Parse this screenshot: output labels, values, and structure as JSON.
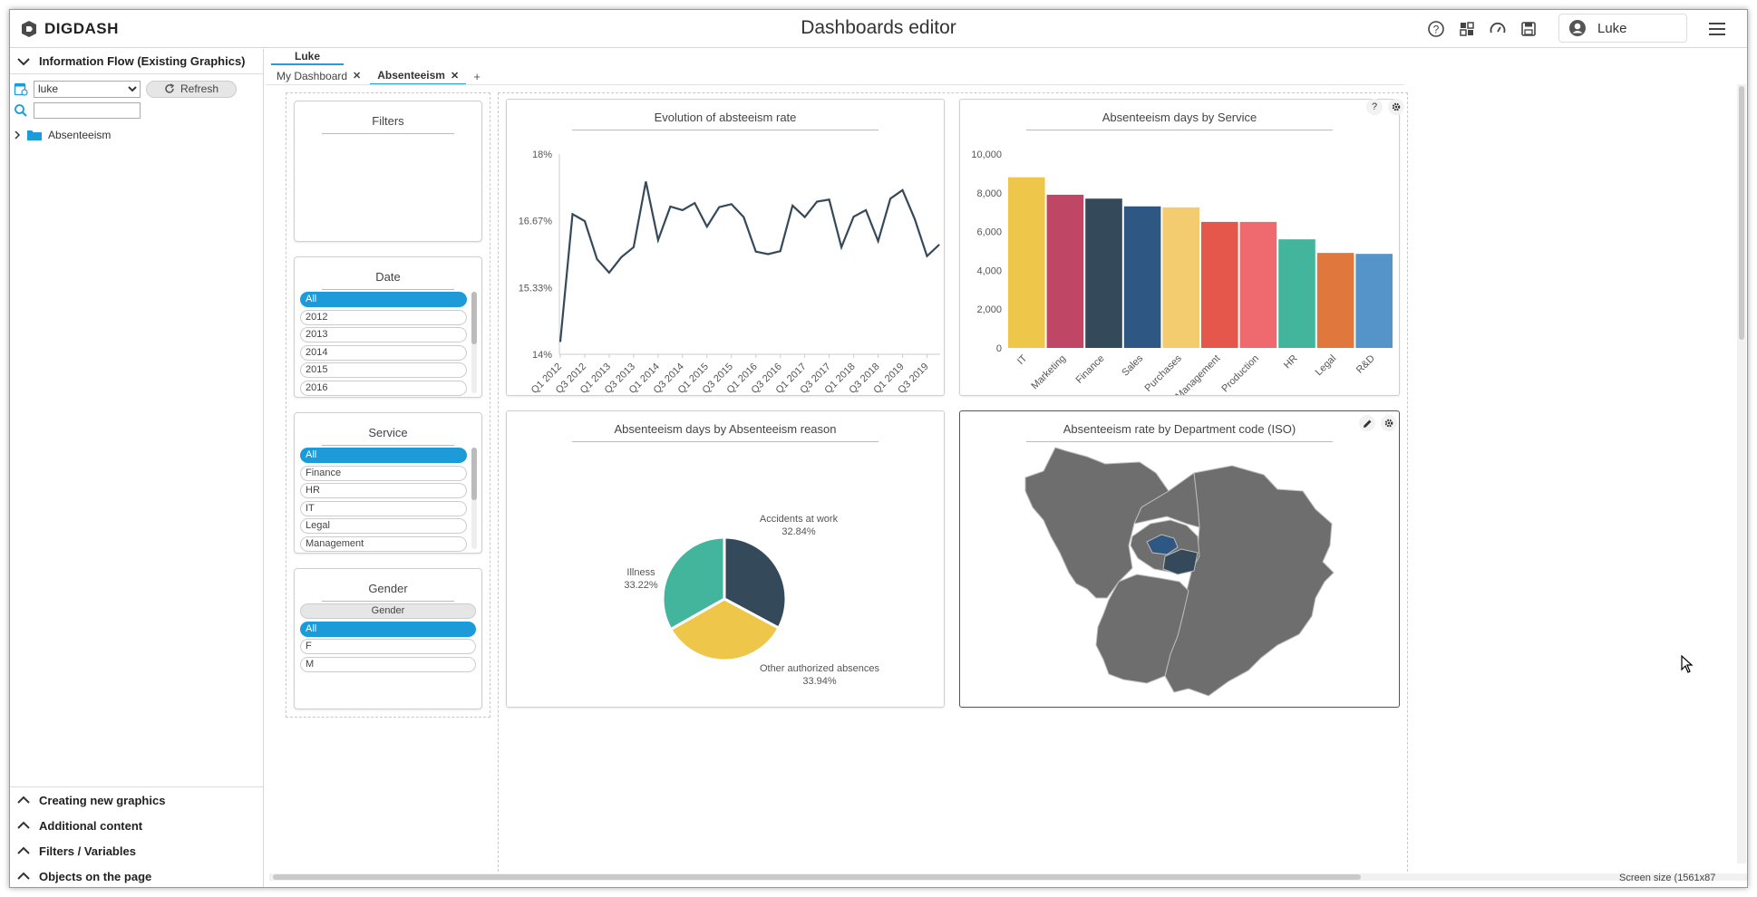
{
  "app": {
    "title": "Dashboards editor",
    "logo_text": "DIGDASH",
    "user_name": "Luke"
  },
  "toolbar_icons": [
    "help-icon",
    "dashboard-icon",
    "speedometer-icon",
    "save-icon"
  ],
  "left_panel": {
    "header": "Information Flow (Existing Graphics)",
    "user_select": "luke",
    "refresh_label": "Refresh",
    "search_value": "",
    "tree_item": "Absenteeism",
    "bottom_sections": [
      "Creating new graphics",
      "Additional content",
      "Filters / Variables",
      "Objects on the page"
    ]
  },
  "tabs": {
    "user_tab": "Luke",
    "items": [
      {
        "label": "My Dashboard",
        "close": "✕"
      },
      {
        "label": "Absenteeism",
        "close": "✕"
      }
    ],
    "add": "+"
  },
  "filters": {
    "title": "Filters",
    "date": {
      "title": "Date",
      "items": [
        "All",
        "2012",
        "2013",
        "2014",
        "2015",
        "2016"
      ],
      "selected": "All"
    },
    "service": {
      "title": "Service",
      "items": [
        "All",
        "Finance",
        "HR",
        "IT",
        "Legal",
        "Management"
      ],
      "selected": "All"
    },
    "gender": {
      "title": "Gender",
      "header_chip": "Gender",
      "items": [
        "All",
        "F",
        "M"
      ],
      "selected": "All"
    }
  },
  "charts": {
    "line_title": "Evolution of absteeism rate",
    "bar_title": "Absenteeism days by Service",
    "pie_title": "Absenteeism days by Absenteeism reason",
    "map_title": "Absenteeism rate by Department code (ISO)"
  },
  "colors": {
    "accent": "#1c9bd8",
    "line": "#34495a",
    "map_fill": "#6e6e6e"
  },
  "footer": {
    "screen_size": "Screen size (1561x87"
  },
  "chart_data": [
    {
      "type": "line",
      "title": "Evolution of absteeism rate",
      "ylim": [
        14,
        18
      ],
      "y_ticks": [
        "18%",
        "16.67%",
        "15.33%",
        "14%"
      ],
      "x_ticks": [
        "Q1 2012",
        "Q3 2012",
        "Q1 2013",
        "Q3 2013",
        "Q1 2014",
        "Q3 2014",
        "Q1 2015",
        "Q3 2015",
        "Q1 2016",
        "Q3 2016",
        "Q1 2017",
        "Q3 2017",
        "Q1 2018",
        "Q3 2018",
        "Q1 2019",
        "Q3 2019"
      ],
      "values": [
        14.25,
        16.8,
        16.66,
        15.9,
        15.63,
        15.94,
        16.14,
        17.45,
        16.28,
        16.95,
        16.88,
        17.02,
        16.55,
        16.94,
        17.0,
        16.74,
        16.05,
        16.0,
        16.06,
        16.97,
        16.74,
        17.05,
        17.09,
        16.14,
        16.75,
        16.88,
        16.26,
        17.11,
        17.28,
        16.7,
        15.96,
        16.19
      ]
    },
    {
      "type": "bar",
      "title": "Absenteeism days by Service",
      "ylim": [
        0,
        10000
      ],
      "y_ticks": [
        "10,000",
        "8,000",
        "6,000",
        "4,000",
        "2,000",
        "0"
      ],
      "categories": [
        "IT",
        "Marketing",
        "Finance",
        "Sales",
        "Purchases",
        "Management",
        "Production",
        "HR",
        "Legal",
        "R&D"
      ],
      "values": [
        8800,
        7900,
        7700,
        7300,
        7250,
        6500,
        6500,
        5600,
        4900,
        4850
      ],
      "colors": [
        "#eec64a",
        "#bf4765",
        "#344a5a",
        "#2f5783",
        "#f3cc6f",
        "#e4574a",
        "#ef6a6f",
        "#44b59d",
        "#e0783e",
        "#5594c9"
      ]
    },
    {
      "type": "pie",
      "title": "Absenteeism days by Absenteeism reason",
      "slices": [
        {
          "label": "Accidents at work",
          "pct_label": "32.84%",
          "value": 32.84,
          "color": "#344a5a"
        },
        {
          "label": "Other authorized absences",
          "pct_label": "33.94%",
          "value": 33.94,
          "color": "#eec64a"
        },
        {
          "label": "Illness",
          "pct_label": "33.22%",
          "value": 33.22,
          "color": "#44b59d"
        }
      ]
    }
  ]
}
